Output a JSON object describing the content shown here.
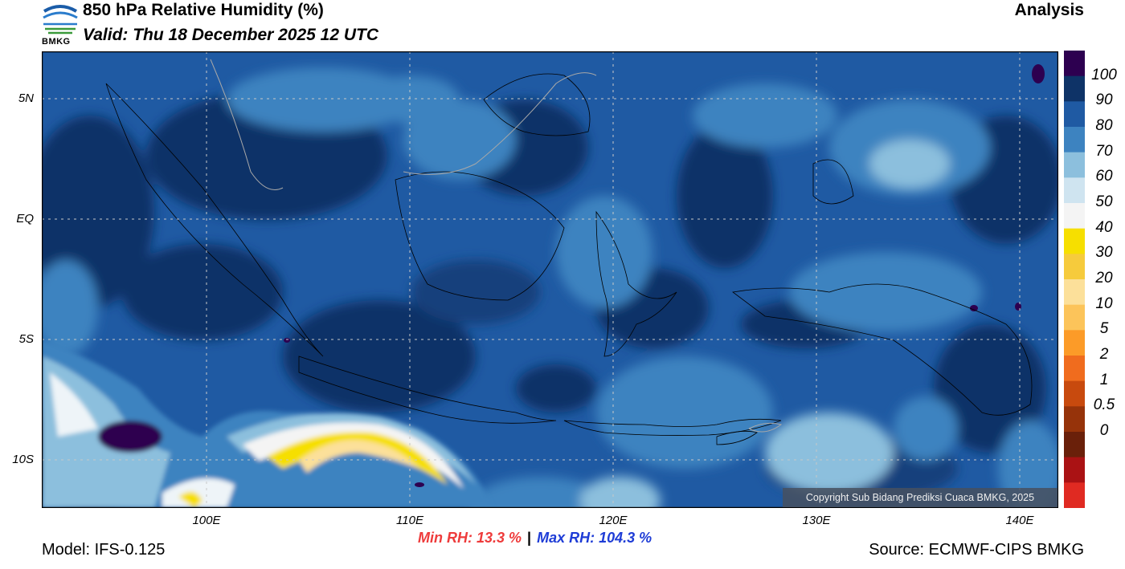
{
  "header": {
    "title": "850 hPa Relative Humidity (%)",
    "valid": "Valid: Thu 18 December 2025 12 UTC",
    "product": "Analysis",
    "logo_text": "BMKG"
  },
  "map": {
    "lat_labels": [
      "5N",
      "EQ",
      "5S",
      "10S"
    ],
    "lon_labels": [
      "100E",
      "110E",
      "120E",
      "130E",
      "140E"
    ],
    "copyright": "Copyright Sub Bidang Prediksi Cuaca BMKG, 2025"
  },
  "colorbar": {
    "labels": [
      "100",
      "90",
      "80",
      "70",
      "60",
      "50",
      "40",
      "30",
      "20",
      "10",
      "5",
      "2",
      "1",
      "0.5",
      "0"
    ],
    "colors": [
      "#2d0050",
      "#0e3367",
      "#1f5aa3",
      "#3d83c0",
      "#8cbfdd",
      "#cfe4f0",
      "#f4f4f4",
      "#f6df00",
      "#f6cb3c",
      "#fce09a",
      "#fcc45a",
      "#fc9b28",
      "#f06c1e",
      "#c84a0e",
      "#96330a",
      "#6a200a",
      "#aa1214",
      "#e02a22"
    ]
  },
  "stats": {
    "min": "Min RH:  13.3 %",
    "separator": "|",
    "max": "Max RH: 104.3 %"
  },
  "footer": {
    "model": "Model: IFS-0.125",
    "source": "Source: ECMWF-CIPS BMKG"
  }
}
